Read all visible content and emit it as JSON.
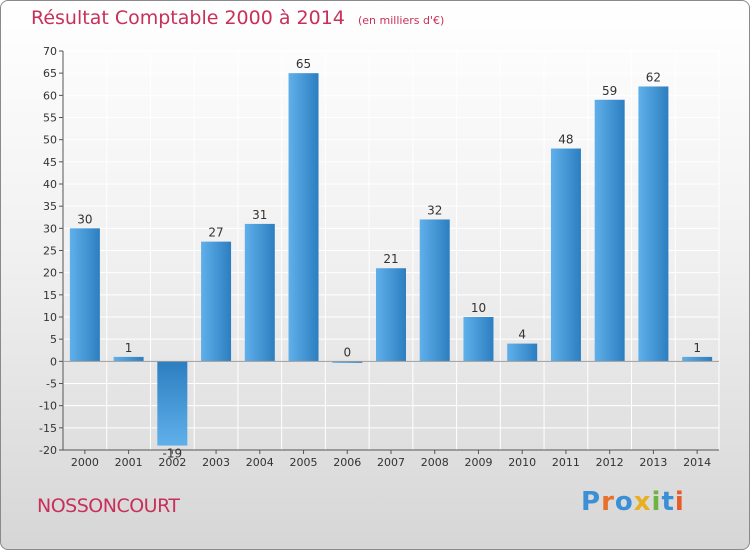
{
  "chart_data": {
    "type": "bar",
    "title": "Résultat Comptable 2000 à 2014",
    "unit_note": "(en milliers d'€)",
    "xlabel": "",
    "ylabel": "",
    "ylim": [
      -20,
      70
    ],
    "ytick_step": 5,
    "grid": true,
    "categories": [
      "2000",
      "2001",
      "2002",
      "2003",
      "2004",
      "2005",
      "2006",
      "2007",
      "2008",
      "2009",
      "2010",
      "2011",
      "2012",
      "2013",
      "2014"
    ],
    "values": [
      30,
      1,
      -19,
      27,
      31,
      65,
      0,
      21,
      32,
      10,
      4,
      48,
      59,
      62,
      1
    ],
    "data_labels": [
      "30",
      "1",
      "-19",
      "27",
      "31",
      "65",
      "0",
      "21",
      "32",
      "10",
      "4",
      "48",
      "59",
      "62",
      "1"
    ]
  },
  "footer": {
    "town": "NOSSONCOURT",
    "logo_letters": [
      "P",
      "r",
      "o",
      "x",
      "i",
      "t",
      "i"
    ],
    "logo_colors": [
      "#3a8fd6",
      "#e8702a",
      "#3a8fd6",
      "#e8b020",
      "#6cb43f",
      "#3a8fd6",
      "#e85a2a"
    ]
  },
  "colors": {
    "title": "#c8305a",
    "bar_light": "#5fb0ea",
    "bar_dark": "#2c7ec0",
    "grid": "#ffffff"
  }
}
